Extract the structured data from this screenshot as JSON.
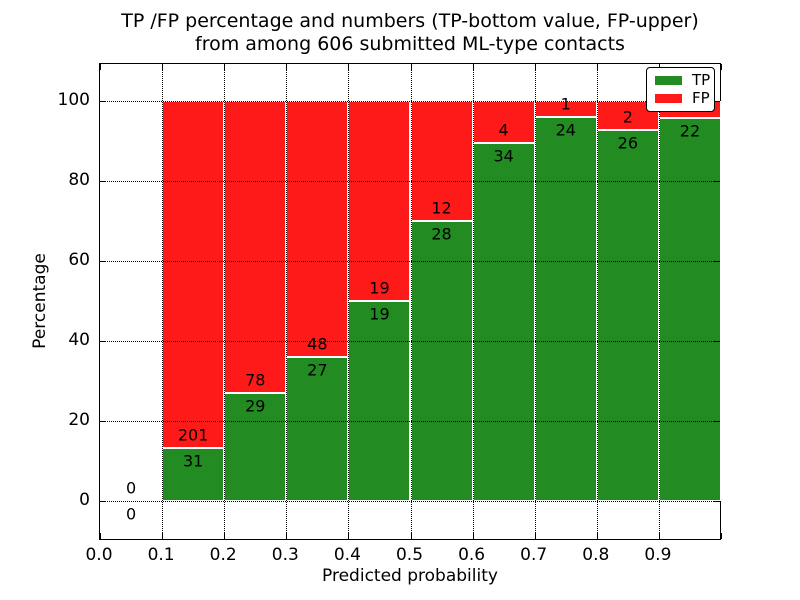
{
  "figure": {
    "title_line1": "TP /FP percentage and numbers (TP-bottom value, FP-upper)",
    "title_line2": "from among 606 submitted ML-type contacts",
    "xlabel": "Predicted probability",
    "ylabel": "Percentage"
  },
  "legend": {
    "items": [
      {
        "label": "TP",
        "color": "#228b22"
      },
      {
        "label": "FP",
        "color": "#ff1a1a"
      }
    ]
  },
  "chart_data": {
    "type": "bar",
    "stacked": true,
    "title": "TP /FP percentage and numbers (TP-bottom value, FP-upper) from among 606 submitted ML-type contacts",
    "xlabel": "Predicted probability",
    "ylabel": "Percentage",
    "total_contacts": 606,
    "xlim": [
      0.0,
      1.0
    ],
    "ylim": [
      -9.75,
      109.25
    ],
    "grid": true,
    "legend_position": "upper right",
    "x_tick_labels": [
      "0.0",
      "0.1",
      "0.2",
      "0.3",
      "0.4",
      "0.5",
      "0.6",
      "0.7",
      "0.8",
      "0.9"
    ],
    "x_tick_values": [
      0.0,
      0.1,
      0.2,
      0.3,
      0.4,
      0.5,
      0.6,
      0.7,
      0.8,
      0.9
    ],
    "y_tick_values": [
      0,
      20,
      40,
      60,
      80,
      100
    ],
    "colors": {
      "tp": "#228b22",
      "fp": "#ff1a1a",
      "bar_edge": "#ffffff"
    },
    "series": [
      {
        "name": "TP",
        "color": "#228b22",
        "values": [
          0,
          31,
          29,
          27,
          19,
          28,
          34,
          24,
          26,
          22
        ]
      },
      {
        "name": "FP",
        "color": "#ff1a1a",
        "values": [
          0,
          201,
          78,
          48,
          19,
          12,
          4,
          1,
          2,
          1
        ]
      }
    ],
    "bins": [
      {
        "x_start": 0.0,
        "x_end": 0.1,
        "tp": 0,
        "fp": 0,
        "tp_pct": 0.0,
        "fp_pct": 0.0
      },
      {
        "x_start": 0.1,
        "x_end": 0.2,
        "tp": 31,
        "fp": 201,
        "tp_pct": 13.36,
        "fp_pct": 86.64
      },
      {
        "x_start": 0.2,
        "x_end": 0.3,
        "tp": 29,
        "fp": 78,
        "tp_pct": 27.1,
        "fp_pct": 72.9
      },
      {
        "x_start": 0.3,
        "x_end": 0.4,
        "tp": 27,
        "fp": 48,
        "tp_pct": 36.0,
        "fp_pct": 64.0
      },
      {
        "x_start": 0.4,
        "x_end": 0.5,
        "tp": 19,
        "fp": 19,
        "tp_pct": 50.0,
        "fp_pct": 50.0
      },
      {
        "x_start": 0.5,
        "x_end": 0.6,
        "tp": 28,
        "fp": 12,
        "tp_pct": 70.0,
        "fp_pct": 30.0
      },
      {
        "x_start": 0.6,
        "x_end": 0.7,
        "tp": 34,
        "fp": 4,
        "tp_pct": 89.47,
        "fp_pct": 10.53
      },
      {
        "x_start": 0.7,
        "x_end": 0.8,
        "tp": 24,
        "fp": 1,
        "tp_pct": 96.0,
        "fp_pct": 4.0
      },
      {
        "x_start": 0.8,
        "x_end": 0.9,
        "tp": 26,
        "fp": 2,
        "tp_pct": 92.86,
        "fp_pct": 7.14
      },
      {
        "x_start": 0.9,
        "x_end": 1.0,
        "tp": 22,
        "fp": 1,
        "tp_pct": 95.65,
        "fp_pct": 4.35
      }
    ]
  }
}
